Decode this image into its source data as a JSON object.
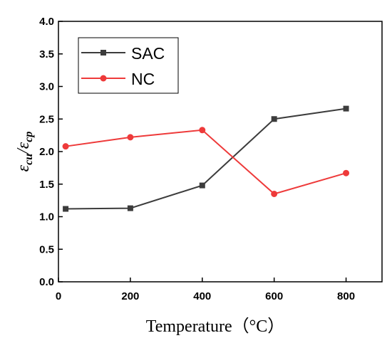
{
  "chart_data": {
    "type": "line",
    "xlabel": "Temperature（°C）",
    "ylabel": {
      "eps_left": "ε",
      "sub_left": "cu",
      "slash": "/",
      "eps_right": "ε",
      "sub_right": "cp"
    },
    "xlim": [
      0,
      900
    ],
    "ylim": [
      0.0,
      4.0
    ],
    "xticks": [
      0,
      200,
      400,
      600,
      800
    ],
    "xtick_labels": [
      "0",
      "200",
      "400",
      "600",
      "800"
    ],
    "yticks": [
      0.0,
      0.5,
      1.0,
      1.5,
      2.0,
      2.5,
      3.0,
      3.5,
      4.0
    ],
    "ytick_labels": [
      "0.0",
      "0.5",
      "1.0",
      "1.5",
      "2.0",
      "2.5",
      "3.0",
      "3.5",
      "4.0"
    ],
    "grid": false,
    "legend_position": "top-left",
    "series": [
      {
        "name": "SAC",
        "marker": "square",
        "color": "#3c3c3c",
        "x": [
          20,
          200,
          400,
          600,
          800
        ],
        "y": [
          1.12,
          1.13,
          1.48,
          2.5,
          2.66
        ]
      },
      {
        "name": "NC",
        "marker": "circle",
        "color": "#ee3a3a",
        "x": [
          20,
          200,
          400,
          600,
          800
        ],
        "y": [
          2.08,
          2.22,
          2.33,
          1.35,
          1.67
        ]
      }
    ]
  }
}
